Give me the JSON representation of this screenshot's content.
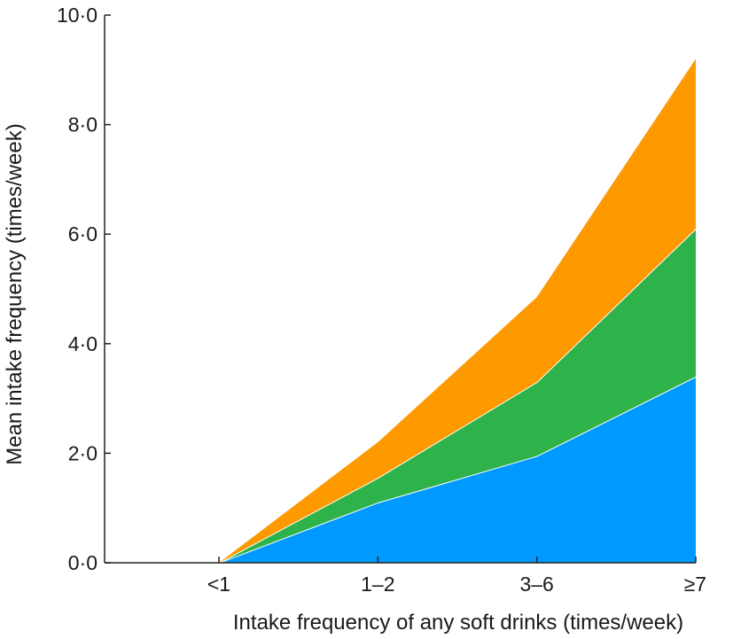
{
  "chart_data": {
    "type": "area",
    "stacked": true,
    "title": "",
    "xlabel": "Intake frequency of any soft drinks (times/week)",
    "ylabel": "Mean intake frequency (times/week)",
    "categories": [
      "<1",
      "1–2",
      "3–6",
      "≥7"
    ],
    "y_ticks": [
      "0·0",
      "2·0",
      "4·0",
      "6·0",
      "8·0",
      "10·0"
    ],
    "ylim": [
      0,
      10
    ],
    "grid": false,
    "legend": "none",
    "series": [
      {
        "color": "#0099FF",
        "values": [
          0.0,
          1.1,
          1.95,
          3.4
        ]
      },
      {
        "color": "#2DB34A",
        "values": [
          0.0,
          0.45,
          1.35,
          2.7
        ]
      },
      {
        "color": "#FF9900",
        "values": [
          0.0,
          0.65,
          1.55,
          3.1
        ]
      }
    ]
  }
}
